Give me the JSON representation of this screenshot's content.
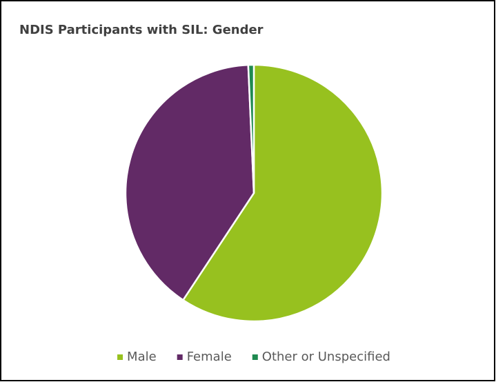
{
  "chart_data": {
    "type": "pie",
    "title": "NDIS Participants with SIL: Gender",
    "categories": [
      "Male",
      "Female",
      "Other or Unspecified"
    ],
    "values": [
      59.3,
      40.0,
      0.7
    ],
    "colors": [
      "#97c11f",
      "#622a66",
      "#1f8a50"
    ],
    "legend": "bottom"
  }
}
